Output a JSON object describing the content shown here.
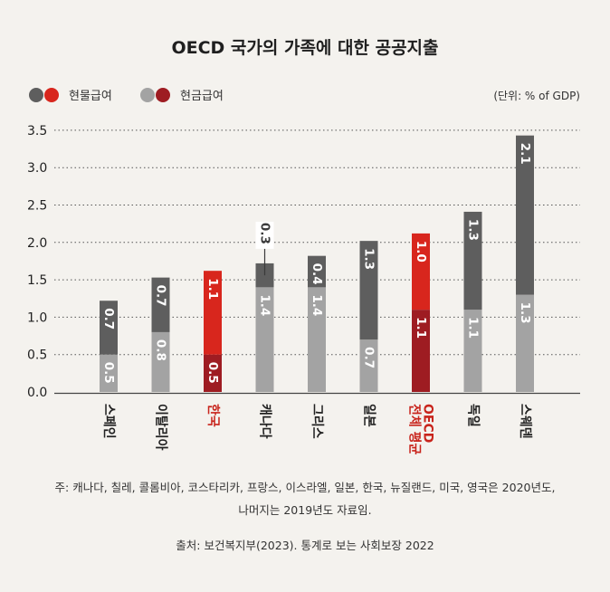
{
  "title": "OECD 국가의 가족에 대한 공공지출",
  "legend": [
    {
      "label": "현물급여",
      "colors": [
        "#5e5e5e",
        "#d8261d"
      ]
    },
    {
      "label": "현금급여",
      "colors": [
        "#a3a3a3",
        "#9e1c22"
      ]
    }
  ],
  "unit_label": "(단위: % of GDP)",
  "footnote": [
    "주: 캐나다, 칠레, 콜롬비아, 코스타리카, 프랑스, 이스라엘, 일본, 한국, 뉴질랜드, 미국, 영국은 2020년도,",
    "나머지는 2019년도 자료임."
  ],
  "source": "출처: 보건복지부(2023). 통계로 보는 사회보장 2022",
  "colors": {
    "inkind": "#5e5e5e",
    "cash": "#a3a3a3",
    "inkind_highlight": "#d8261d",
    "cash_highlight": "#9e1c22",
    "highlight_text": "#c8241c"
  },
  "chart_data": {
    "type": "bar",
    "stacked": true,
    "categories": [
      "스페인",
      "이탈리아",
      "한국",
      "캐나다",
      "그리스",
      "일본",
      "전체 평균 OECD",
      "독일",
      "스웨덴"
    ],
    "category_labels": [
      [
        "스페인"
      ],
      [
        "이탈리아"
      ],
      [
        "한국"
      ],
      [
        "캐나다"
      ],
      [
        "그리스"
      ],
      [
        "일본"
      ],
      [
        "전체 평균",
        "OECD"
      ],
      [
        "독일"
      ],
      [
        "스웨덴"
      ]
    ],
    "highlighted_categories": [
      "한국",
      "전체 평균 OECD"
    ],
    "series": [
      {
        "name": "현금급여",
        "values": [
          0.5,
          0.8,
          0.5,
          1.4,
          1.4,
          0.7,
          1.1,
          1.1,
          1.3
        ]
      },
      {
        "name": "현물급여",
        "values": [
          0.7,
          0.7,
          1.1,
          0.3,
          0.4,
          1.3,
          1.0,
          1.3,
          2.1
        ]
      }
    ],
    "bar_tops": [
      1.22,
      1.53,
      1.62,
      1.72,
      1.82,
      2.02,
      2.12,
      2.41,
      3.43
    ],
    "yticks": [
      "0.0",
      "0.5",
      "1.0",
      "1.5",
      "2.0",
      "2.5",
      "3.0",
      "3.5"
    ],
    "ylim": [
      0,
      3.5
    ],
    "grid": true,
    "legend_position": "top-left"
  }
}
